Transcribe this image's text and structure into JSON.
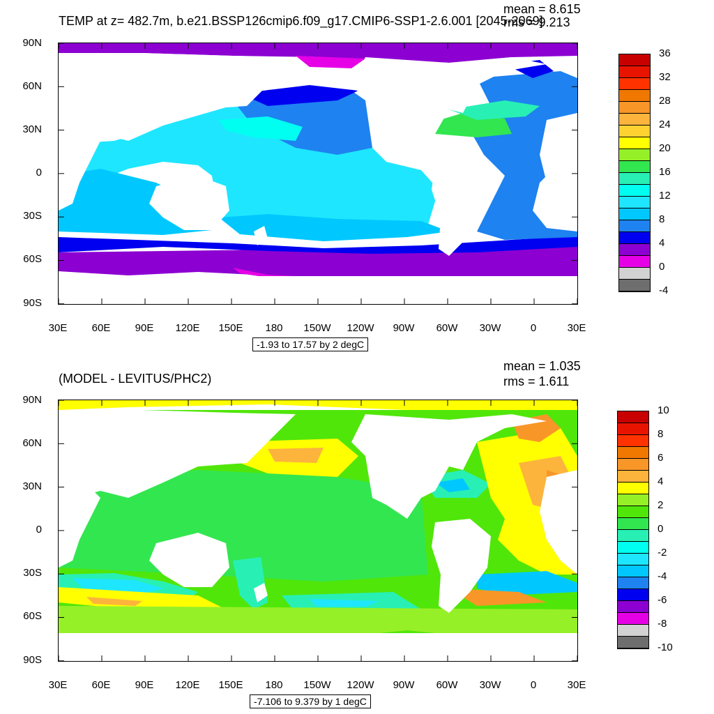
{
  "panel1": {
    "title": "TEMP at z= 482.7m, b.e21.BSSP126cmip6.f09_g17.CMIP6-SSP1-2.6.001 [2045-2069]",
    "mean": "mean = 8.615",
    "rms": "rms = 9.213",
    "range_label": "-1.93 to 17.57 by 2 degC",
    "colorbar_labels": [
      "36",
      "32",
      "28",
      "24",
      "20",
      "16",
      "12",
      "8",
      "4",
      "0",
      "-4"
    ],
    "colorbar_colors": [
      "#c80000",
      "#e81400",
      "#ff3200",
      "#f07800",
      "#f89628",
      "#fcb43c",
      "#ffd232",
      "#ffff00",
      "#96f028",
      "#32e650",
      "#28f0b4",
      "#00fff0",
      "#1ee6ff",
      "#00c8ff",
      "#1e82f0",
      "#0000f0",
      "#8c00d2",
      "#e600e6",
      "#d2d2d2",
      "#6e6e6e"
    ]
  },
  "panel2": {
    "title": "(MODEL - LEVITUS/PHC2)",
    "mean": "mean = 1.035",
    "rms": "rms = 1.611",
    "range_label": "-7.106 to 9.379 by 1 degC",
    "colorbar_labels": [
      "10",
      "8",
      "6",
      "4",
      "2",
      "0",
      "-2",
      "-4",
      "-6",
      "-8",
      "-10"
    ],
    "colorbar_colors": [
      "#c80000",
      "#e81400",
      "#ff3200",
      "#f07800",
      "#f89628",
      "#fcb43c",
      "#ffff00",
      "#96f028",
      "#50e60a",
      "#32e650",
      "#28f0b4",
      "#00fff0",
      "#1ee6ff",
      "#00c8ff",
      "#1e82f0",
      "#0000f0",
      "#8c00d2",
      "#e600e6",
      "#d2d2d2",
      "#6e6e6e"
    ]
  },
  "axes": {
    "lat_labels": [
      "90N",
      "60N",
      "30N",
      "0",
      "30S",
      "60S",
      "90S"
    ],
    "lon_labels": [
      "30E",
      "60E",
      "90E",
      "120E",
      "150E",
      "180",
      "150W",
      "120W",
      "90W",
      "60W",
      "30W",
      "0",
      "30E"
    ]
  }
}
